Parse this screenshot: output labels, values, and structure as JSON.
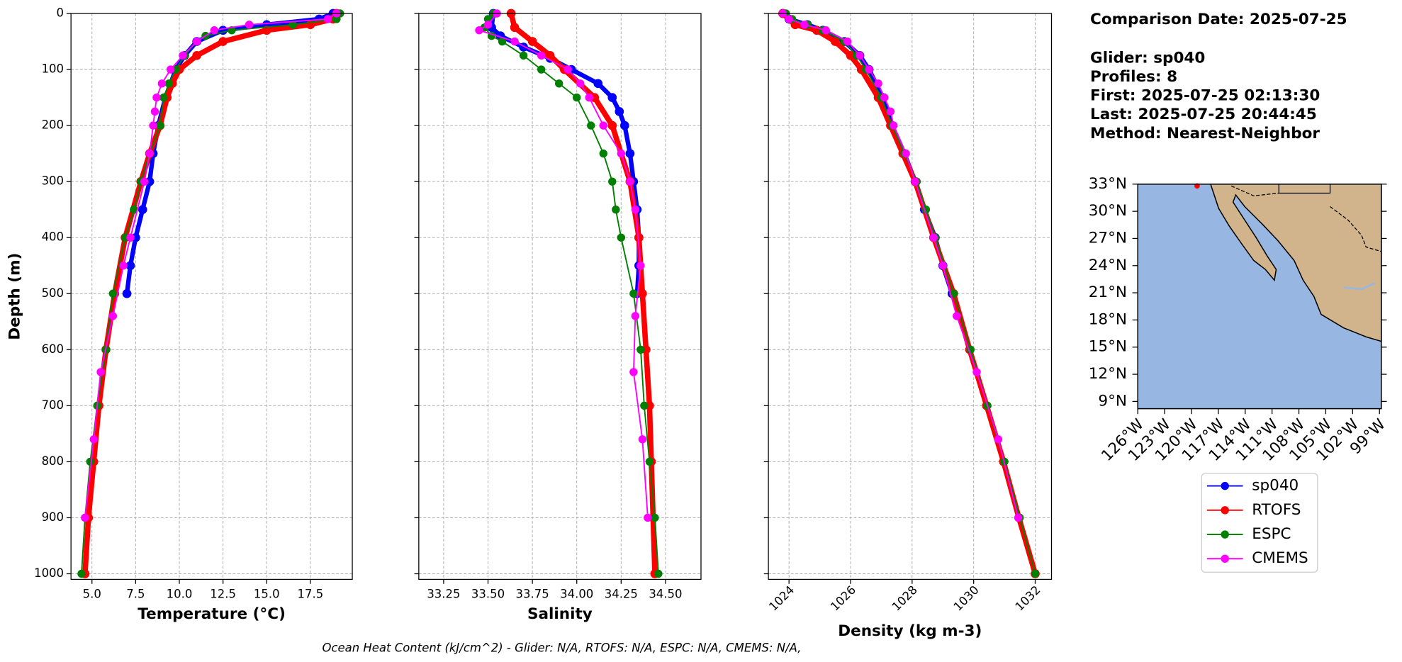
{
  "chart_data": {
    "type": "profile",
    "ylabel": "Depth (m)",
    "ylim": [
      1010,
      0
    ],
    "yticks": [
      0,
      100,
      200,
      300,
      400,
      500,
      600,
      700,
      800,
      900,
      1000
    ],
    "grid": true,
    "series": [
      {
        "name": "sp040",
        "color": "#0000ff"
      },
      {
        "name": "RTOFS",
        "color": "#ff0000"
      },
      {
        "name": "ESPC",
        "color": "#008000"
      },
      {
        "name": "CMEMS",
        "color": "#ff00ff"
      }
    ],
    "panels": [
      {
        "xlabel": "Temperature (°C)",
        "xlim": [
          3.8,
          19.9
        ],
        "xticks": [
          {
            "value": 5,
            "label": "5.0"
          },
          7.5,
          {
            "value": 10,
            "label": "10.0"
          },
          12.5,
          {
            "value": 15,
            "label": "15.0"
          },
          17.5
        ],
        "profiles": [
          {
            "depth": [
              0,
              10,
              20,
              30,
              50,
              75,
              100,
              150,
              200,
              250,
              300,
              350,
              400,
              450,
              500
            ],
            "values": [
              18.8,
              18,
              15,
              12.5,
              11,
              10.3,
              9.8,
              9.2,
              8.8,
              8.5,
              8.3,
              7.9,
              7.5,
              7.2,
              7.0
            ]
          },
          {
            "depth": [
              0,
              10,
              20,
              30,
              50,
              75,
              100,
              125,
              150,
              200,
              250,
              300,
              400,
              500,
              600,
              700,
              800,
              900,
              1000
            ],
            "values": [
              19.0,
              18.8,
              17.5,
              15,
              12.5,
              11,
              10,
              9.6,
              9.3,
              8.9,
              8.3,
              7.8,
              6.9,
              6.3,
              5.8,
              5.4,
              5.1,
              4.8,
              4.6
            ]
          },
          {
            "depth": [
              0,
              10,
              20,
              30,
              40,
              50,
              75,
              100,
              125,
              150,
              200,
              250,
              300,
              350,
              400,
              500,
              600,
              700,
              800,
              900,
              1000
            ],
            "values": [
              19.2,
              19,
              16.5,
              13,
              11.5,
              11,
              10.3,
              9.8,
              9.4,
              9.1,
              8.9,
              8.3,
              7.8,
              7.4,
              6.9,
              6.2,
              5.8,
              5.3,
              4.9,
              4.6,
              4.4
            ]
          },
          {
            "depth": [
              0,
              10,
              20,
              30,
              50,
              75,
              100,
              125,
              150,
              175,
              200,
              250,
              300,
              400,
              450,
              540,
              640,
              760,
              900
            ],
            "values": [
              19,
              18.5,
              14,
              12,
              11,
              10.2,
              9.5,
              9.0,
              8.7,
              8.6,
              8.5,
              8.3,
              8,
              7.2,
              6.8,
              6.2,
              5.5,
              5.1,
              4.6
            ]
          }
        ]
      },
      {
        "xlabel": "Salinity",
        "xlim": [
          33.11,
          34.7
        ],
        "xticks": [
          33.25,
          {
            "value": 33.5,
            "label": "33.50"
          },
          33.75,
          {
            "value": 34,
            "label": "34.00"
          },
          34.25,
          {
            "value": 34.5,
            "label": "34.50"
          }
        ],
        "profiles": [
          {
            "depth": [
              0,
              25,
              40,
              60,
              80,
              100,
              125,
              150,
              175,
              200,
              250,
              300,
              350,
              400,
              450,
              500
            ],
            "values": [
              33.53,
              33.52,
              33.57,
              33.7,
              33.85,
              33.97,
              34.12,
              34.2,
              34.24,
              34.27,
              34.3,
              34.32,
              34.34,
              34.35,
              34.35,
              34.34
            ]
          },
          {
            "depth": [
              0,
              25,
              50,
              75,
              100,
              150,
              200,
              300,
              400,
              500,
              600,
              700,
              800,
              900,
              1000
            ],
            "values": [
              33.63,
              33.65,
              33.75,
              33.85,
              33.93,
              34.1,
              34.2,
              34.3,
              34.35,
              34.37,
              34.39,
              34.41,
              34.42,
              34.43,
              34.44
            ]
          },
          {
            "depth": [
              0,
              10,
              25,
              40,
              50,
              75,
              100,
              125,
              150,
              200,
              250,
              300,
              350,
              400,
              500,
              600,
              700,
              800,
              900,
              1000
            ],
            "values": [
              33.53,
              33.5,
              33.48,
              33.52,
              33.58,
              33.7,
              33.8,
              33.9,
              34.0,
              34.08,
              34.15,
              34.2,
              34.22,
              34.25,
              34.32,
              34.36,
              34.38,
              34.41,
              34.44,
              34.46
            ]
          },
          {
            "depth": [
              0,
              20,
              30,
              50,
              75,
              100,
              125,
              150,
              200,
              250,
              300,
              350,
              450,
              540,
              640,
              760,
              900
            ],
            "values": [
              33.55,
              33.5,
              33.45,
              33.65,
              33.8,
              33.95,
              34.02,
              34.07,
              34.15,
              34.25,
              34.3,
              34.33,
              34.36,
              34.33,
              34.32,
              34.37,
              34.4
            ]
          }
        ]
      },
      {
        "xlabel": "Density (kg m-3)",
        "xlim": [
          1023.33,
          1032.53
        ],
        "xticks": [
          1024,
          1026,
          1028,
          1030,
          1032
        ],
        "profiles": [
          {
            "depth": [
              0,
              10,
              20,
              30,
              50,
              75,
              100,
              150,
              200,
              250,
              300,
              350,
              400,
              450,
              500
            ],
            "values": [
              1023.8,
              1024.0,
              1024.6,
              1025.1,
              1025.8,
              1026.3,
              1026.6,
              1027.05,
              1027.35,
              1027.75,
              1028.1,
              1028.4,
              1028.75,
              1029.0,
              1029.3
            ]
          },
          {
            "depth": [
              0,
              20,
              30,
              50,
              75,
              100,
              150,
              200,
              250,
              300,
              400,
              500,
              600,
              700,
              800,
              900,
              1000
            ],
            "values": [
              1023.8,
              1024.2,
              1024.9,
              1025.5,
              1026.0,
              1026.35,
              1026.9,
              1027.3,
              1027.7,
              1028.1,
              1028.7,
              1029.35,
              1029.87,
              1030.42,
              1030.97,
              1031.47,
              1032.0
            ]
          },
          {
            "depth": [
              0,
              10,
              20,
              30,
              50,
              75,
              100,
              150,
              200,
              250,
              300,
              350,
              400,
              500,
              600,
              700,
              800,
              900,
              1000
            ],
            "values": [
              1023.9,
              1024.1,
              1024.6,
              1025.1,
              1025.8,
              1026.2,
              1026.5,
              1027.0,
              1027.35,
              1027.75,
              1028.15,
              1028.45,
              1028.75,
              1029.35,
              1029.9,
              1030.45,
              1031.0,
              1031.5,
              1032.0
            ]
          },
          {
            "depth": [
              0,
              10,
              20,
              30,
              50,
              75,
              100,
              125,
              150,
              175,
              200,
              250,
              300,
              400,
              450,
              540,
              640,
              760,
              900
            ],
            "values": [
              1023.8,
              1024.0,
              1024.5,
              1025.2,
              1025.9,
              1026.3,
              1026.6,
              1026.9,
              1027.1,
              1027.3,
              1027.4,
              1027.8,
              1028.1,
              1028.7,
              1029.0,
              1029.45,
              1030.1,
              1030.8,
              1031.45
            ]
          }
        ]
      }
    ]
  },
  "info": {
    "date": "Comparison Date: 2025-07-25",
    "lines": [
      "Glider: sp040",
      "Profiles: 8",
      "First: 2025-07-25 02:13:30",
      "Last: 2025-07-25 20:44:45",
      "Method: Nearest-Neighbor"
    ]
  },
  "map": {
    "lat_ticks": [
      "33°N",
      "30°N",
      "27°N",
      "24°N",
      "21°N",
      "18°N",
      "15°N",
      "12°N",
      "9°N"
    ],
    "lon_ticks": [
      "126°W",
      "123°W",
      "120°W",
      "117°W",
      "114°W",
      "111°W",
      "108°W",
      "105°W",
      "102°W",
      "99°W"
    ]
  },
  "footer": "Ocean Heat Content (kJ/cm^2) - Glider: N/A,  RTOFS: N/A,  ESPC: N/A,  CMEMS: N/A,"
}
